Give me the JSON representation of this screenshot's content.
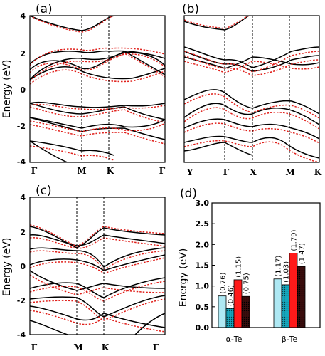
{
  "chart_data": [
    {
      "panel": "a",
      "type": "line",
      "panel_label": "(a)",
      "ylabel": "Energy (eV)",
      "ylim": [
        -4,
        4
      ],
      "yticks": [
        "4",
        "2",
        "0",
        "-2",
        "-4"
      ],
      "kpoints": [
        "Γ",
        "M",
        "K",
        "Γ"
      ],
      "series": [
        {
          "style": "black-solid",
          "color": "#000000"
        },
        {
          "style": "red-dotted",
          "color": "#e0201b"
        }
      ]
    },
    {
      "panel": "b",
      "type": "line",
      "panel_label": "(b)",
      "ylim": [
        -4,
        4
      ],
      "kpoints": [
        "Y",
        "Γ",
        "X",
        "M",
        "K"
      ],
      "series": [
        {
          "style": "black-solid",
          "color": "#000000"
        },
        {
          "style": "red-dotted",
          "color": "#e0201b"
        }
      ]
    },
    {
      "panel": "c",
      "type": "line",
      "panel_label": "(c)",
      "ylabel": "Energy (eV)",
      "ylim": [
        -4,
        4
      ],
      "yticks": [
        "4",
        "2",
        "0",
        "-2",
        "-4"
      ],
      "kpoints": [
        "Γ",
        "M",
        "K",
        "Γ"
      ],
      "series": [
        {
          "style": "black-solid",
          "color": "#000000"
        },
        {
          "style": "red-dotted",
          "color": "#e0201b"
        }
      ]
    },
    {
      "panel": "d",
      "type": "bar",
      "panel_label": "(d)",
      "ylabel": "Energy (eV)",
      "ylim": [
        0,
        3.0
      ],
      "yticks": [
        "0.0",
        "0.5",
        "1.0",
        "1.5",
        "2.0",
        "2.5",
        "3.0"
      ],
      "categories": [
        "α-Te",
        "β-Te"
      ],
      "bars": [
        {
          "group": 0,
          "value": 0.76,
          "label": "(0.76)",
          "fill": "#aee8f3",
          "pattern": false
        },
        {
          "group": 0,
          "value": 0.46,
          "label": "(0.46)",
          "fill": "#16a7bd",
          "pattern": true
        },
        {
          "group": 0,
          "value": 1.15,
          "label": "(1.15)",
          "fill": "#ff1a1a",
          "pattern": false
        },
        {
          "group": 0,
          "value": 0.75,
          "label": "(0.75)",
          "fill": "#3a0d0d",
          "pattern": true
        },
        {
          "group": 1,
          "value": 1.17,
          "label": "(1.17)",
          "fill": "#aee8f3",
          "pattern": false
        },
        {
          "group": 1,
          "value": 1.03,
          "label": "(1.03)",
          "fill": "#16a7bd",
          "pattern": true
        },
        {
          "group": 1,
          "value": 1.79,
          "label": "(1.79)",
          "fill": "#ff1a1a",
          "pattern": false
        },
        {
          "group": 1,
          "value": 1.47,
          "label": "(1.47)",
          "fill": "#3a0d0d",
          "pattern": true
        }
      ]
    }
  ]
}
